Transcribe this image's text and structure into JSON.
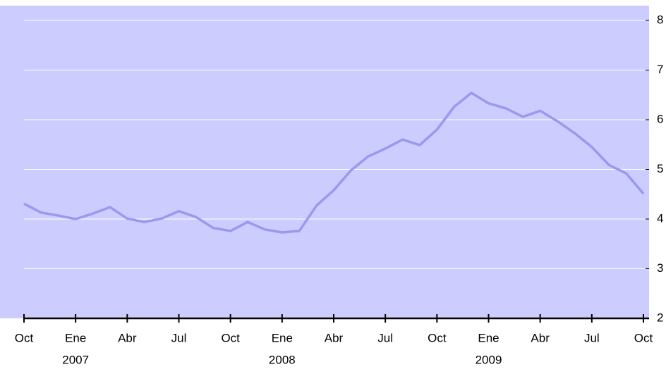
{
  "chart_data": {
    "type": "line",
    "categories": [
      "Oct",
      null,
      null,
      "Ene",
      null,
      null,
      "Abr",
      null,
      null,
      "Jul",
      null,
      null,
      "Oct",
      null,
      null,
      "Ene",
      null,
      null,
      "Abr",
      null,
      null,
      "Jul",
      null,
      null,
      "Oct",
      null,
      null,
      "Ene",
      null,
      null,
      "Abr",
      null,
      null,
      "Jul",
      null,
      null,
      "Oct"
    ],
    "years": [
      "2007",
      "2008",
      "2009"
    ],
    "values": [
      4.31,
      4.13,
      4.07,
      4.0,
      4.11,
      4.24,
      4.01,
      3.94,
      4.01,
      4.16,
      4.04,
      3.82,
      3.76,
      3.94,
      3.79,
      3.73,
      3.76,
      4.27,
      4.58,
      4.98,
      5.26,
      5.42,
      5.6,
      5.49,
      5.8,
      6.26,
      6.54,
      6.33,
      6.23,
      6.06,
      6.18,
      5.97,
      5.73,
      5.45,
      5.09,
      4.92,
      4.51
    ],
    "color": "#9999ee",
    "ylim": [
      2,
      8
    ],
    "yticks": [
      2,
      3,
      4,
      5,
      6,
      7,
      8
    ],
    "grid": true
  }
}
